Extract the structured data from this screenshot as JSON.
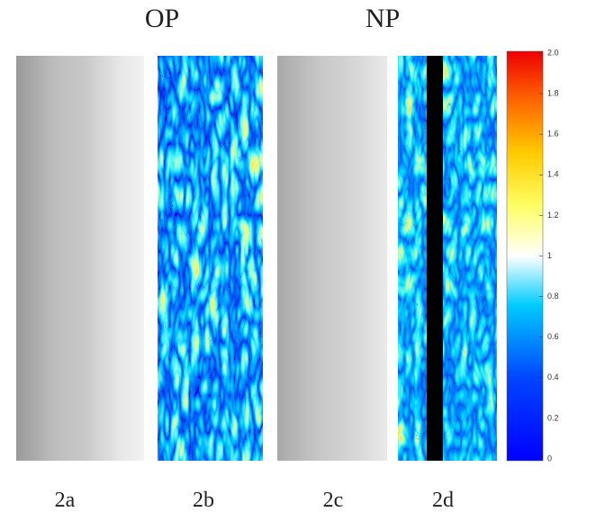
{
  "titles": [
    "OP",
    "NP"
  ],
  "panels": [
    "2a",
    "2b",
    "2c",
    "2d"
  ],
  "colorbar": {
    "range": [
      0,
      2
    ],
    "ticks": [
      {
        "value": 2,
        "label": "2.0"
      },
      1.8,
      1.6,
      1.4,
      1.2,
      1,
      0.8,
      0.6,
      0.4,
      0.2,
      0
    ]
  }
}
